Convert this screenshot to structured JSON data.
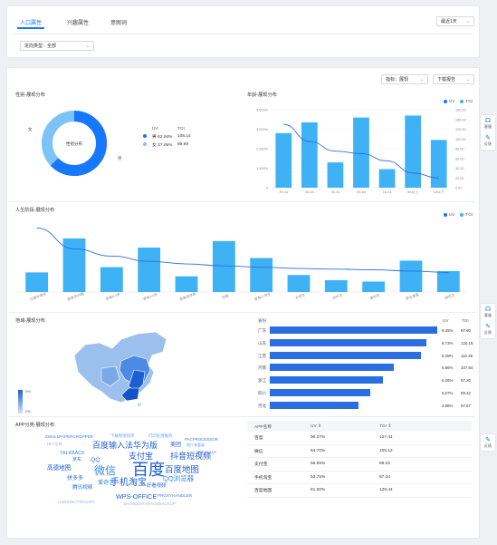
{
  "tabs": [
    {
      "label": "人口属性",
      "active": true
    },
    {
      "label": "兴趣属性",
      "active": false
    },
    {
      "label": "意图词",
      "active": false
    }
  ],
  "date_select": {
    "value": "最近1天"
  },
  "direction_select": {
    "value": "定向类型：全部"
  },
  "metric_select": {
    "value": "指标：展现"
  },
  "download_button": {
    "label": "下载报告"
  },
  "side_tools": {
    "help": "客服",
    "feedback": "反馈"
  },
  "gender": {
    "title": "性别-展现分布",
    "center_label": "性别分布",
    "outer_labels": [
      "女",
      "男"
    ],
    "table_headers": [
      "UV",
      "TGI"
    ],
    "rows": [
      {
        "name": "男",
        "uv": "62.94%",
        "tgi": "108.14",
        "color": "#1677ff"
      },
      {
        "name": "女",
        "uv": "37.06%",
        "tgi": "89.69",
        "color": "#7cc3f7"
      }
    ]
  },
  "age": {
    "title": "年龄-展现分布",
    "legend": [
      "UV",
      "TGI"
    ]
  },
  "life": {
    "title": "人生阶段-展现分布",
    "legend": [
      "UV",
      "TGI"
    ]
  },
  "region": {
    "title": "地域-展现分布",
    "scale_top": "0%",
    "scale_bottom": "0%",
    "table_headers": [
      "省份",
      "UV",
      "TGI"
    ],
    "rows": [
      {
        "name": "广东",
        "uv": "9.45%",
        "tgi": "97.80",
        "frac": 1.0
      },
      {
        "name": "山东",
        "uv": "8.73%",
        "tgi": "122.15",
        "frac": 0.935
      },
      {
        "name": "江苏",
        "uv": "8.39%",
        "tgi": "110.45",
        "frac": 0.9
      },
      {
        "name": "河南",
        "uv": "6.86%",
        "tgi": "107.64",
        "frac": 0.74
      },
      {
        "name": "浙江",
        "uv": "6.26%",
        "tgi": "97.20",
        "frac": 0.675
      },
      {
        "name": "四川",
        "uv": "5.57%",
        "tgi": "99.42",
        "frac": 0.6
      },
      {
        "name": "河北",
        "uv": "4.86%",
        "tgi": "97.67",
        "frac": 0.53
      }
    ]
  },
  "app": {
    "title": "APP分类-展现分布",
    "table_headers": [
      "APP名称",
      "UV ⇕",
      "TGI ⇕"
    ],
    "rows": [
      {
        "name": "百度",
        "uv": "96.27%",
        "tgi": "127.41"
      },
      {
        "name": "微信",
        "uv": "64.70%",
        "tgi": "105.12"
      },
      {
        "name": "支付宝",
        "uv": "56.65%",
        "tgi": "89.22"
      },
      {
        "name": "手机淘宝",
        "uv": "53.75%",
        "tgi": "87.34"
      },
      {
        "name": "百度地图",
        "uv": "51.50%",
        "tgi": "128.44"
      }
    ],
    "words": [
      {
        "t": "ZWALLPAPERCROPPER",
        "c": "#3d7be0"
      },
      {
        "t": "下载管理程序",
        "c": "#6aa9e8"
      },
      {
        "t": "打印处理服务",
        "c": "#6aa9e8"
      },
      {
        "t": "NFT全栈",
        "c": "#9ab6de"
      },
      {
        "t": "百度输入法华为版",
        "c": "#1d5fd0"
      },
      {
        "t": "美团",
        "c": "#1d5fd0"
      },
      {
        "t": "PACPROCESSOR",
        "c": "#3d7be0"
      },
      {
        "t": "图片查看器",
        "c": "#6aa9e8"
      },
      {
        "t": "TALKBACK",
        "c": "#3a8bd8"
      },
      {
        "t": "支付宝",
        "c": "#1f58c7"
      },
      {
        "t": "抖音短视频",
        "c": "#1f58c7"
      },
      {
        "t": "INCALLUI",
        "c": "#3d7be0"
      },
      {
        "t": "京东",
        "c": "#2a70d8"
      },
      {
        "t": "QQ",
        "c": "#2a70d8"
      },
      {
        "t": "高德地图",
        "c": "#1d5fd0"
      },
      {
        "t": "微信",
        "c": "#3a8bd8"
      },
      {
        "t": "百度",
        "c": "#1a5ad6"
      },
      {
        "t": "百度地图",
        "c": "#1d5fd0"
      },
      {
        "t": "手机淘宝",
        "c": "#1a5ad6"
      },
      {
        "t": "QQ浏览器",
        "c": "#3a8bd8"
      },
      {
        "t": "拼多多",
        "c": "#2a70d8"
      },
      {
        "t": "爱奇艺",
        "c": "#3a8bd8"
      },
      {
        "t": "腾讯视频",
        "c": "#2a70d8"
      },
      {
        "t": "好看视频",
        "c": "#2a70d8"
      },
      {
        "t": "WPS-OFFICE",
        "c": "#1d5fd0"
      },
      {
        "t": "PROXYHANDLER",
        "c": "#3d7be0"
      },
      {
        "t": "USERDICTIONARY",
        "c": "#9ab6de"
      },
      {
        "t": "SHAREDSTORAGEBACKUP",
        "c": "#9ab6de"
      }
    ]
  },
  "chart_data": [
    {
      "type": "pie",
      "title": "性别-展现分布",
      "categories": [
        "男",
        "女"
      ],
      "values": [
        62.94,
        37.06
      ]
    },
    {
      "type": "bar",
      "title": "年龄-展现分布",
      "categories": [
        "35-44",
        "45-54",
        "25-34",
        "55-64",
        "18-24",
        "65以上",
        "18以下"
      ],
      "series": [
        {
          "name": "UV",
          "values": [
            2800,
            3350,
            1300,
            3600,
            950,
            3700,
            2450
          ]
        },
        {
          "name": "TGI",
          "values": [
            130,
            95,
            75,
            70,
            55,
            30,
            20
          ]
        }
      ],
      "ylim": [
        0,
        4000
      ],
      "yticks_left": [
        "0",
        "1,000%",
        "2,000%",
        "3,000%",
        "4,000%"
      ],
      "yticks_right": [
        "0.00",
        "20.00",
        "40.00",
        "60.00",
        "80.00",
        "100.00",
        "120.00",
        "140.00",
        "160.00"
      ],
      "y2lim": [
        0,
        160
      ]
    },
    {
      "type": "bar",
      "title": "人生阶段-展现分布",
      "categories": [
        "已婚中青年",
        "家有孕中期",
        "家有0-3岁",
        "家有3-6岁",
        "家有孩学前",
        "孕期",
        "家有小学生",
        "大学生",
        "初中生",
        "高中生",
        "家长准备",
        "研究生"
      ],
      "series": [
        {
          "name": "UV",
          "values": [
            0.3,
            0.82,
            0.38,
            0.68,
            0.24,
            0.78,
            0.52,
            0.26,
            0.18,
            0.16,
            0.48,
            0.32
          ]
        },
        {
          "name": "TGI",
          "values": [
            0.98,
            0.66,
            0.55,
            0.47,
            0.43,
            0.4,
            0.38,
            0.36,
            0.35,
            0.34,
            0.32,
            0.3
          ]
        }
      ]
    }
  ]
}
